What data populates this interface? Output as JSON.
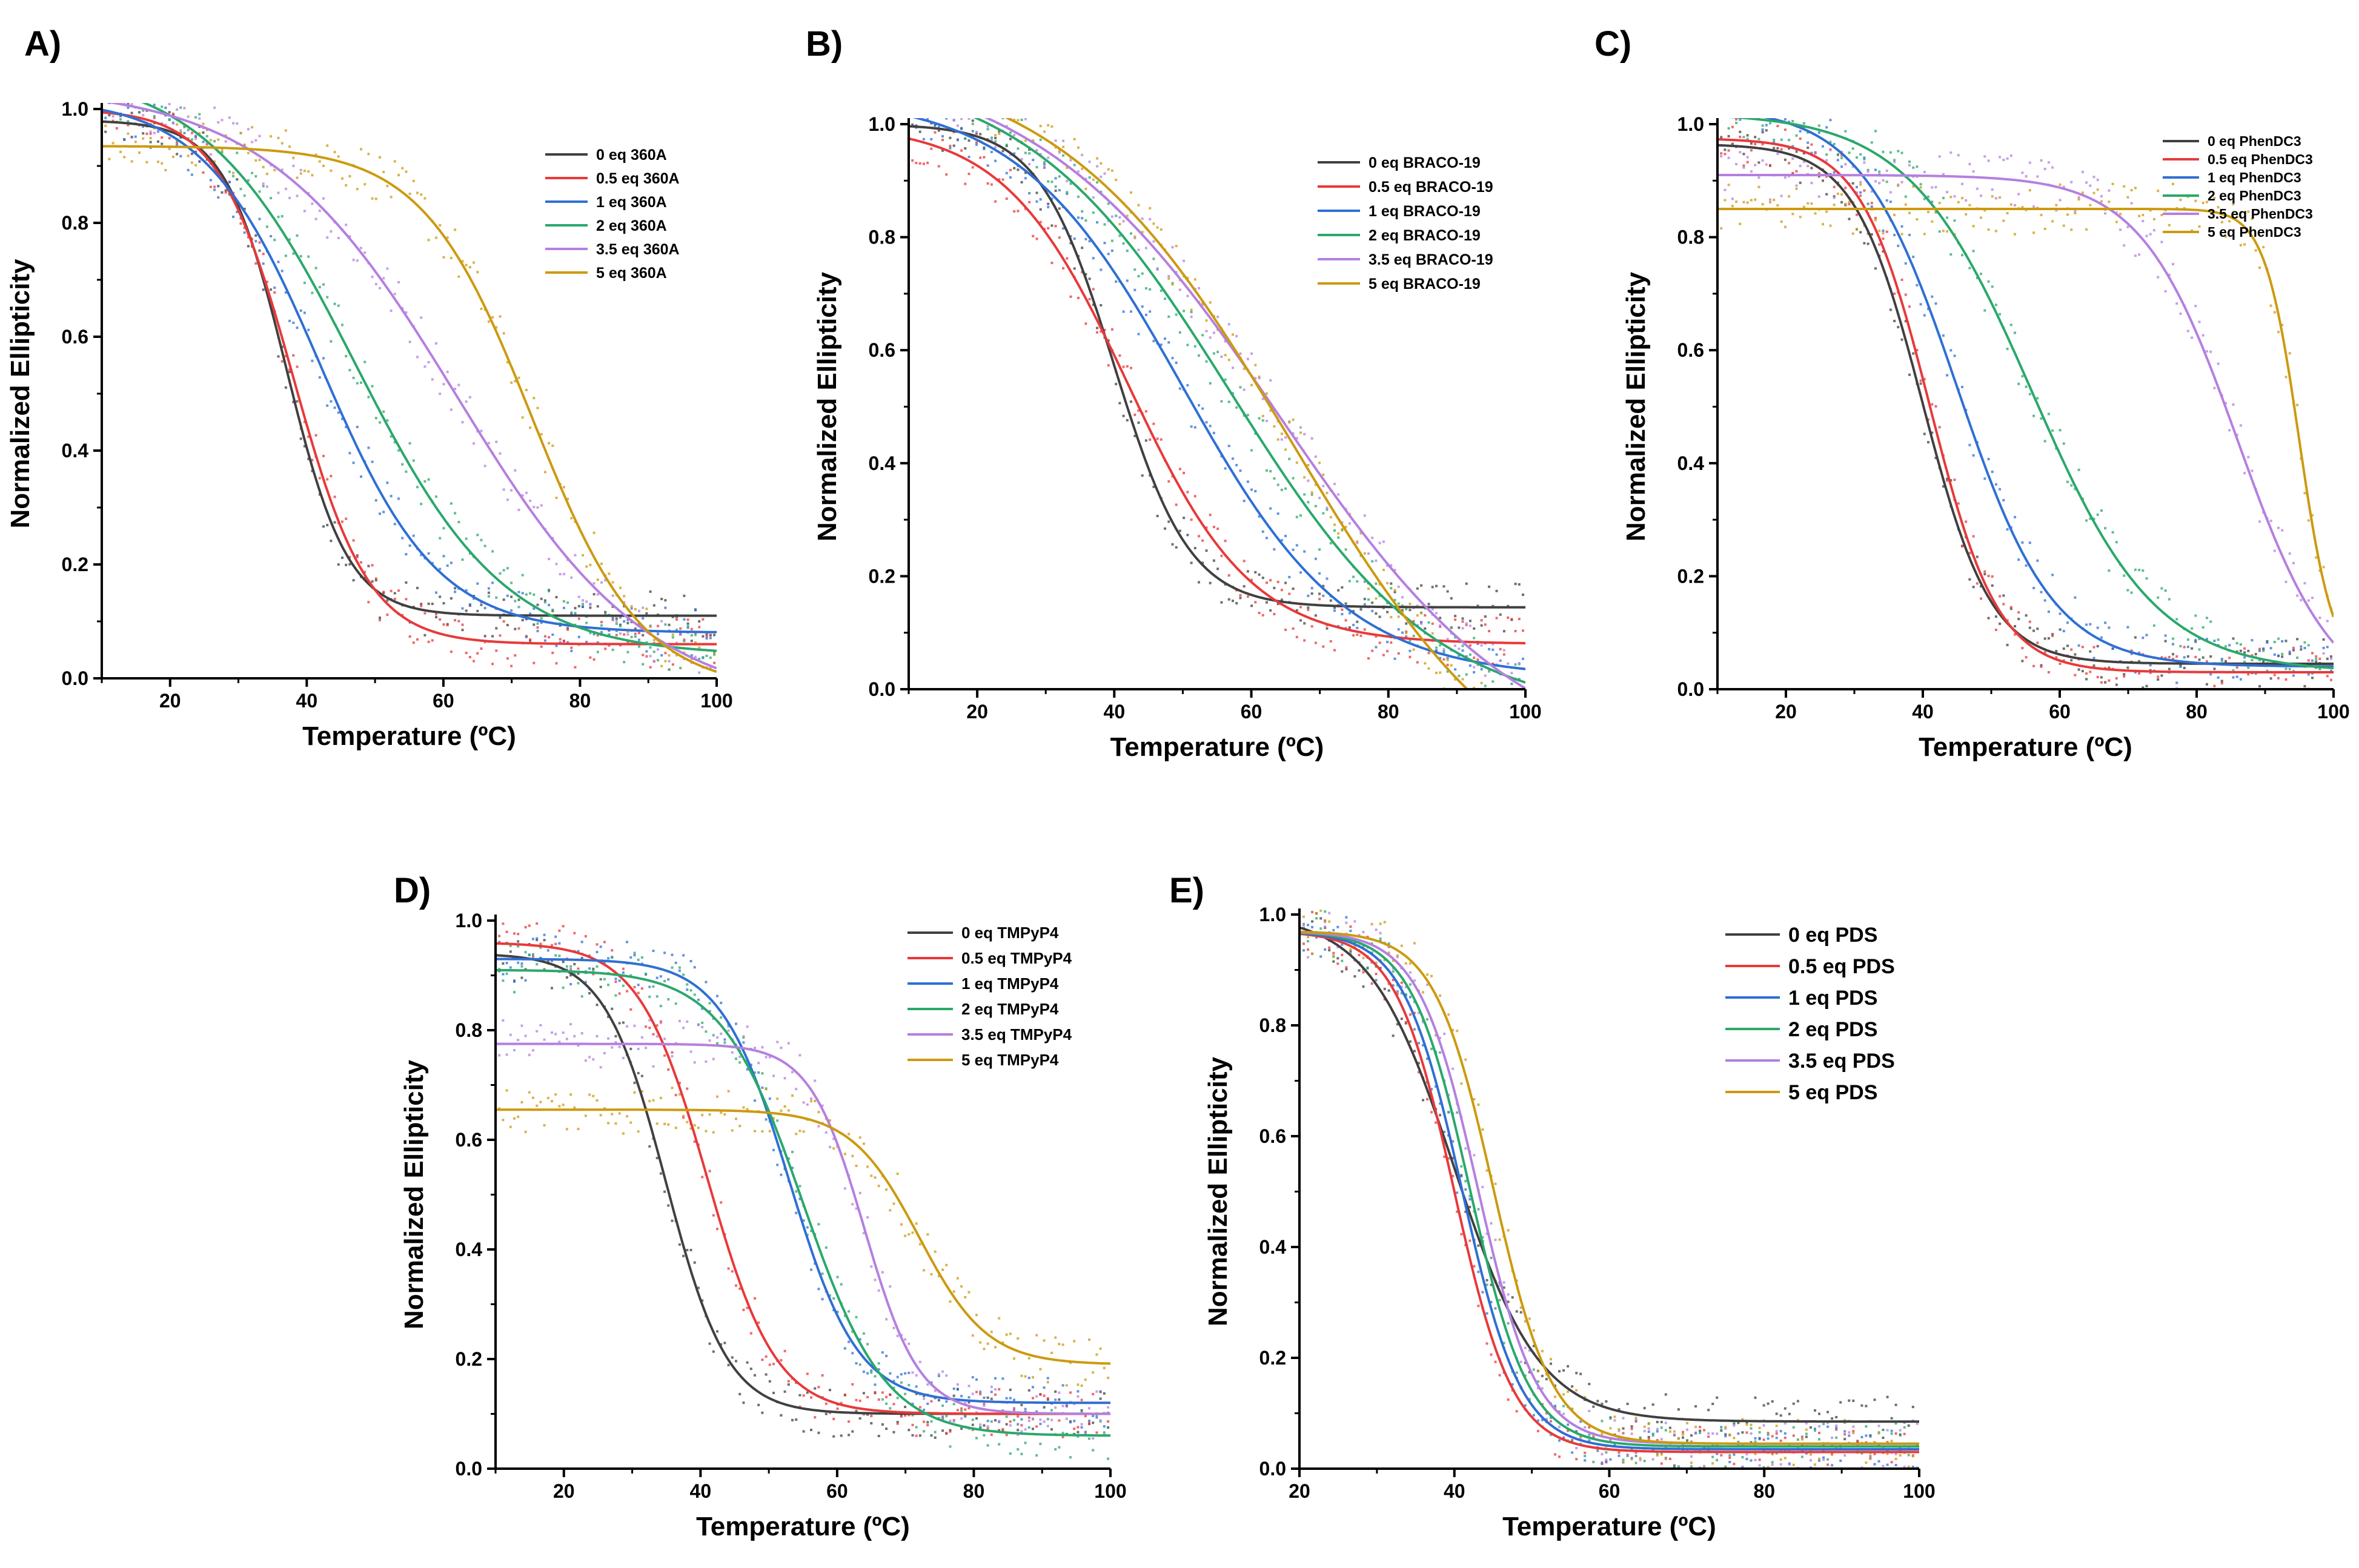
{
  "figure": {
    "panel_labels": [
      "A)",
      "B)",
      "C)",
      "D)",
      "E)"
    ]
  },
  "chart_data": [
    {
      "panel": "A)",
      "type": "line",
      "xlabel": "Temperature (ºC)",
      "ylabel": "Normalized Ellipticity",
      "xlim": [
        10,
        100
      ],
      "ylim": [
        0,
        1.0
      ],
      "xticks": [
        "20",
        "40",
        "60",
        "80",
        "100"
      ],
      "yticks": [
        "0.0",
        "0.2",
        "0.4",
        "0.6",
        "0.8",
        "1.0"
      ],
      "legend_position": "top-right",
      "legend_size": "small",
      "series": [
        {
          "name": "0 eq 360A",
          "color": "#404040",
          "top": 0.98,
          "bottom": 0.11,
          "tm": 37,
          "slope": 4.5
        },
        {
          "name": "0.5 eq 360A",
          "color": "#e8393a",
          "top": 1.0,
          "bottom": 0.06,
          "tm": 38,
          "slope": 5.5
        },
        {
          "name": "1 eq 360A",
          "color": "#2f6fd4",
          "top": 1.02,
          "bottom": 0.08,
          "tm": 42,
          "slope": 8.5
        },
        {
          "name": "2 eq 360A",
          "color": "#2aa86b",
          "top": 1.07,
          "bottom": 0.04,
          "tm": 47,
          "slope": 11
        },
        {
          "name": "3.5 eq 360A",
          "color": "#b57fe0",
          "top": 1.04,
          "bottom": -0.05,
          "tm": 62,
          "slope": 14
        },
        {
          "name": "5 eq 360A",
          "color": "#cc9a10",
          "top": 0.935,
          "bottom": -0.02,
          "tm": 73,
          "slope": 8
        }
      ]
    },
    {
      "panel": "B)",
      "type": "line",
      "xlabel": "Temperature (ºC)",
      "ylabel": "Normalized Ellipticity",
      "xlim": [
        10,
        100
      ],
      "ylim": [
        0,
        1.0
      ],
      "xticks": [
        "20",
        "40",
        "60",
        "80",
        "100"
      ],
      "yticks": [
        "0.0",
        "0.2",
        "0.4",
        "0.6",
        "0.8",
        "1.0"
      ],
      "legend_position": "top-right",
      "legend_size": "small",
      "series": [
        {
          "name": "0 eq BRACO-19",
          "color": "#404040",
          "top": 1.0,
          "bottom": 0.145,
          "tm": 40,
          "slope": 5.5
        },
        {
          "name": "0.5 eq BRACO-19",
          "color": "#e8393a",
          "top": 1.0,
          "bottom": 0.08,
          "tm": 42,
          "slope": 9
        },
        {
          "name": "1 eq BRACO-19",
          "color": "#2f6fd4",
          "top": 1.05,
          "bottom": 0.02,
          "tm": 50,
          "slope": 12
        },
        {
          "name": "2 eq BRACO-19",
          "color": "#2aa86b",
          "top": 1.1,
          "bottom": -0.05,
          "tm": 57,
          "slope": 15
        },
        {
          "name": "3.5 eq BRACO-19",
          "color": "#b57fe0",
          "top": 1.12,
          "bottom": -0.15,
          "tm": 64,
          "slope": 18
        },
        {
          "name": "5 eq BRACO-19",
          "color": "#cc9a10",
          "top": 1.12,
          "bottom": -0.25,
          "tm": 66,
          "slope": 17
        }
      ]
    },
    {
      "panel": "C)",
      "type": "line",
      "xlabel": "Temperature (ºC)",
      "ylabel": "Normalized Ellipticity",
      "xlim": [
        10,
        100
      ],
      "ylim": [
        0,
        1.0
      ],
      "xticks": [
        "20",
        "40",
        "60",
        "80",
        "100"
      ],
      "yticks": [
        "0.0",
        "0.2",
        "0.4",
        "0.6",
        "0.8",
        "1.0"
      ],
      "legend_position": "top-right",
      "legend_size": "small",
      "series": [
        {
          "name": "0 eq PhenDC3",
          "color": "#404040",
          "top": 0.965,
          "bottom": 0.045,
          "tm": 40,
          "slope": 5
        },
        {
          "name": "0.5 eq PhenDC3",
          "color": "#e8393a",
          "top": 0.975,
          "bottom": 0.03,
          "tm": 41,
          "slope": 5
        },
        {
          "name": "1 eq PhenDC3",
          "color": "#2f6fd4",
          "top": 1.03,
          "bottom": 0.04,
          "tm": 45,
          "slope": 7
        },
        {
          "name": "2 eq PhenDC3",
          "color": "#2aa86b",
          "top": 1.02,
          "bottom": 0.03,
          "tm": 56,
          "slope": 9
        },
        {
          "name": "3.5 eq PhenDC3",
          "color": "#b57fe0",
          "top": 0.91,
          "bottom": -0.03,
          "tm": 86,
          "slope": 7
        },
        {
          "name": "5 eq PhenDC3",
          "color": "#cc9a10",
          "top": 0.85,
          "bottom": 0.03,
          "tm": 95,
          "slope": 2.5
        }
      ]
    },
    {
      "panel": "D)",
      "type": "line",
      "xlabel": "Temperature (ºC)",
      "ylabel": "Normalized Ellipticity",
      "xlim": [
        10,
        100
      ],
      "ylim": [
        0,
        1.0
      ],
      "xticks": [
        "20",
        "40",
        "60",
        "80",
        "100"
      ],
      "yticks": [
        "0.0",
        "0.2",
        "0.4",
        "0.6",
        "0.8",
        "1.0"
      ],
      "legend_position": "top-right",
      "legend_size": "small",
      "series": [
        {
          "name": "0 eq TMPyP4",
          "color": "#404040",
          "top": 0.94,
          "bottom": 0.1,
          "tm": 35,
          "slope": 4.5
        },
        {
          "name": "0.5 eq TMPyP4",
          "color": "#e8393a",
          "top": 0.96,
          "bottom": 0.1,
          "tm": 41,
          "slope": 5
        },
        {
          "name": "1 eq TMPyP4",
          "color": "#2f6fd4",
          "top": 0.93,
          "bottom": 0.12,
          "tm": 53,
          "slope": 5
        },
        {
          "name": "2 eq TMPyP4",
          "color": "#2aa86b",
          "top": 0.91,
          "bottom": 0.06,
          "tm": 55,
          "slope": 6
        },
        {
          "name": "3.5 eq TMPyP4",
          "color": "#b57fe0",
          "top": 0.775,
          "bottom": 0.1,
          "tm": 64,
          "slope": 4
        },
        {
          "name": "5 eq TMPyP4",
          "color": "#cc9a10",
          "top": 0.655,
          "bottom": 0.19,
          "tm": 72,
          "slope": 5
        }
      ]
    },
    {
      "panel": "E)",
      "type": "line",
      "xlabel": "Temperature (ºC)",
      "ylabel": "Normalized Ellipticity",
      "xlim": [
        20,
        100
      ],
      "ylim": [
        0,
        1.0
      ],
      "xticks": [
        "20",
        "40",
        "60",
        "80",
        "100"
      ],
      "yticks": [
        "0.0",
        "0.2",
        "0.4",
        "0.6",
        "0.8",
        "1.0"
      ],
      "legend_position": "top-right",
      "legend_size": "large",
      "series": [
        {
          "name": "0 eq PDS",
          "color": "#404040",
          "top": 1.0,
          "bottom": 0.085,
          "tm": 40,
          "slope": 5.5
        },
        {
          "name": "0.5 eq PDS",
          "color": "#e8393a",
          "top": 0.97,
          "bottom": 0.03,
          "tm": 40,
          "slope": 3.8
        },
        {
          "name": "1 eq PDS",
          "color": "#2f6fd4",
          "top": 0.97,
          "bottom": 0.035,
          "tm": 41,
          "slope": 3.8
        },
        {
          "name": "2 eq PDS",
          "color": "#2aa86b",
          "top": 0.97,
          "bottom": 0.04,
          "tm": 42,
          "slope": 3.8
        },
        {
          "name": "3.5 eq PDS",
          "color": "#b57fe0",
          "top": 0.97,
          "bottom": 0.045,
          "tm": 43,
          "slope": 3.8
        },
        {
          "name": "5 eq PDS",
          "color": "#cc9a10",
          "top": 0.97,
          "bottom": 0.045,
          "tm": 45,
          "slope": 3.8
        }
      ]
    }
  ]
}
